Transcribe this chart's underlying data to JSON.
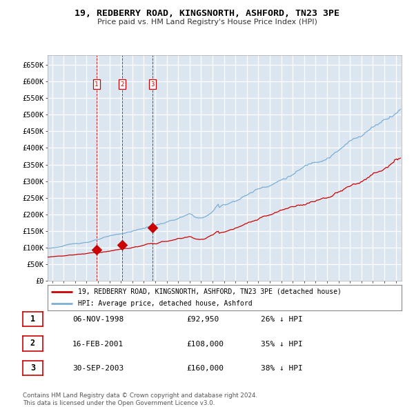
{
  "title": "19, REDBERRY ROAD, KINGSNORTH, ASHFORD, TN23 3PE",
  "subtitle": "Price paid vs. HM Land Registry's House Price Index (HPI)",
  "legend_line1": "19, REDBERRY ROAD, KINGSNORTH, ASHFORD, TN23 3PE (detached house)",
  "legend_line2": "HPI: Average price, detached house, Ashford",
  "footer1": "Contains HM Land Registry data © Crown copyright and database right 2024.",
  "footer2": "This data is licensed under the Open Government Licence v3.0.",
  "transactions": [
    {
      "num": 1,
      "date": "06-NOV-1998",
      "price": "£92,950",
      "hpi_diff": "26% ↓ HPI",
      "year": 1998.87,
      "price_val": 92950
    },
    {
      "num": 2,
      "date": "16-FEB-2001",
      "price": "£108,000",
      "hpi_diff": "35% ↓ HPI",
      "year": 2001.12,
      "price_val": 108000
    },
    {
      "num": 3,
      "date": "30-SEP-2003",
      "price": "£160,000",
      "hpi_diff": "38% ↓ HPI",
      "year": 2003.75,
      "price_val": 160000
    }
  ],
  "background_color": "#dce6f1",
  "grid_color": "#ffffff",
  "line_color_red": "#cc0000",
  "line_color_blue": "#7bafd4",
  "ylim": [
    0,
    680000
  ],
  "xlim_start": 1994.6,
  "xlim_end": 2025.5,
  "ytick_vals": [
    0,
    50000,
    100000,
    150000,
    200000,
    250000,
    300000,
    350000,
    400000,
    450000,
    500000,
    550000,
    600000,
    650000
  ],
  "xtick_years": [
    1995,
    1996,
    1997,
    1998,
    1999,
    2000,
    2001,
    2002,
    2003,
    2004,
    2005,
    2006,
    2007,
    2008,
    2009,
    2010,
    2011,
    2012,
    2013,
    2014,
    2015,
    2016,
    2017,
    2018,
    2019,
    2020,
    2021,
    2022,
    2023,
    2024,
    2025
  ]
}
